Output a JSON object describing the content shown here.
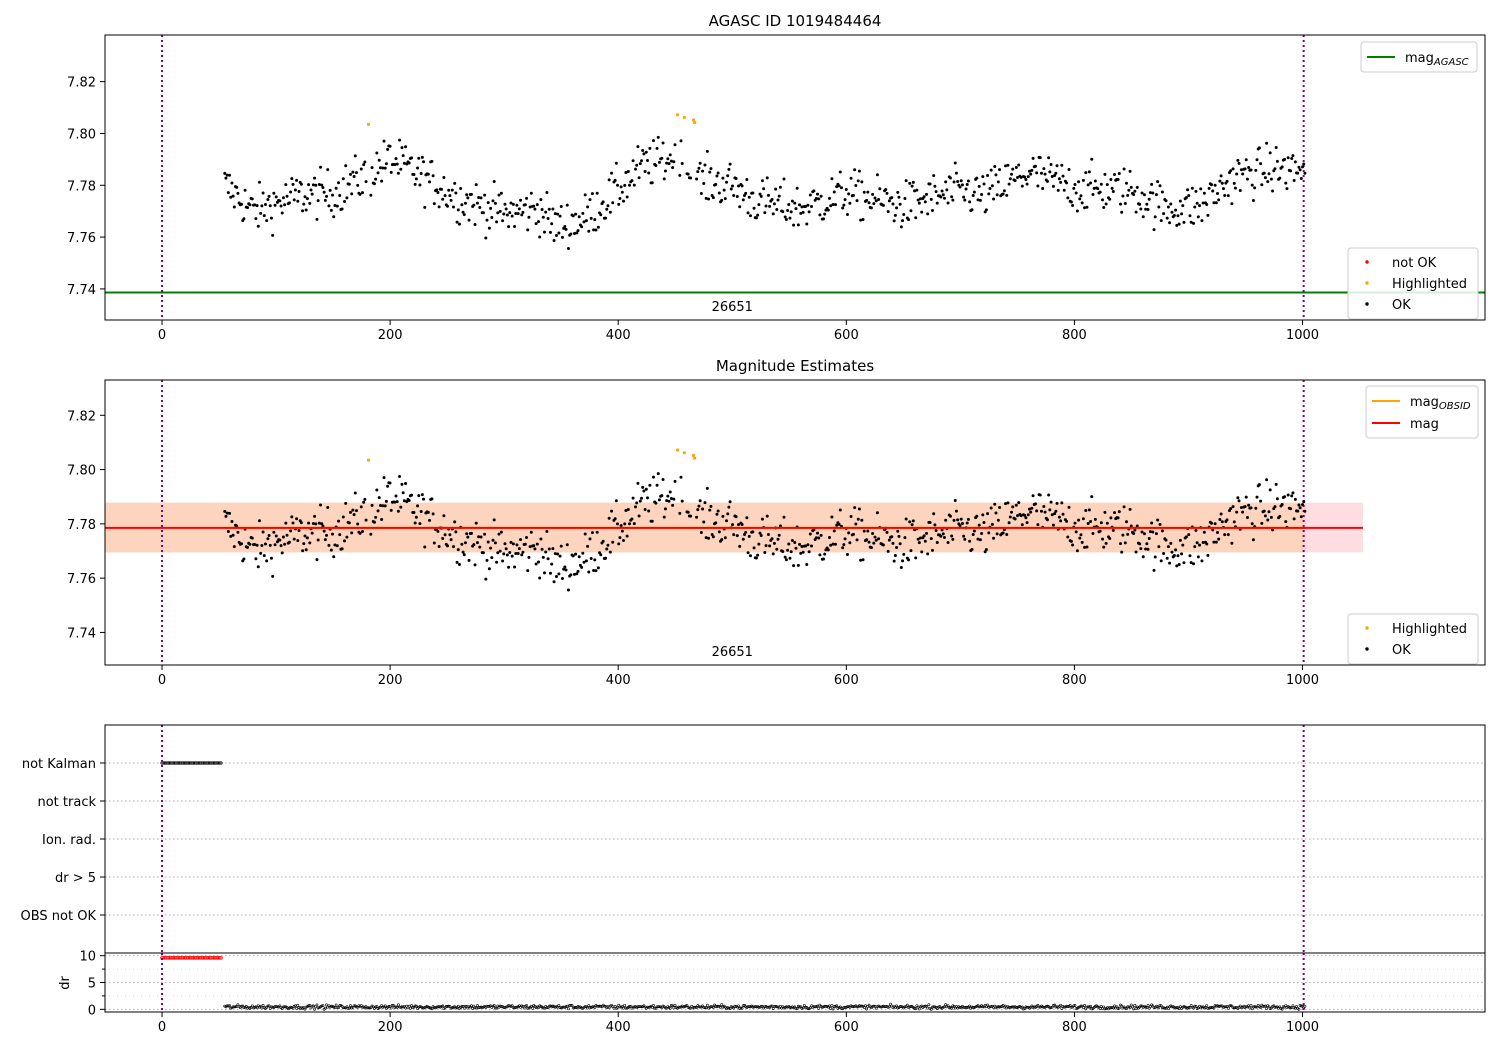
{
  "figure": {
    "background": "#ffffff",
    "colors": {
      "ok": "#000000",
      "highlighted": "#ffa500",
      "not_ok": "#ff0000",
      "agasc_line": "#008000",
      "obsid_line": "#ffa500",
      "mag_line": "#ff0000",
      "band_pink": "#ffdde3",
      "band_orange": "#fdd4bd",
      "obs_boundary": "#800080",
      "grid": "#b0b0b0"
    }
  },
  "chart_data": [
    {
      "id": "top",
      "type": "scatter",
      "title": "AGASC ID 1019484464",
      "xlim": [
        -50,
        1160
      ],
      "ylim": [
        7.728,
        7.838
      ],
      "xticks": [
        0,
        200,
        400,
        600,
        800,
        1000
      ],
      "yticks": [
        7.74,
        7.76,
        7.78,
        7.8,
        7.82
      ],
      "obs_boundaries": [
        0,
        1001
      ],
      "obsid_label": "26651",
      "agasc_mag": 7.7386,
      "series": {
        "start": 55,
        "end": 1003,
        "mean": 7.7785
      },
      "highlighted_points": [
        [
          181,
          7.8035
        ],
        [
          452,
          7.8072
        ],
        [
          458,
          7.8062
        ],
        [
          466,
          7.8052
        ],
        [
          467,
          7.8042
        ]
      ],
      "legend_upper": [
        {
          "label": "mag",
          "sub": "AGASC",
          "marker": "line",
          "color": "#008000"
        }
      ],
      "legend_lower": [
        {
          "label": "not OK",
          "marker": "dot",
          "color": "#ff0000"
        },
        {
          "label": "Highlighted",
          "marker": "dot",
          "color": "#ffa500"
        },
        {
          "label": "OK",
          "marker": "dot",
          "color": "#000000"
        }
      ]
    },
    {
      "id": "mid",
      "type": "scatter",
      "title": "Magnitude Estimates",
      "xlim": [
        -50,
        1160
      ],
      "ylim": [
        7.728,
        7.833
      ],
      "xticks": [
        0,
        200,
        400,
        600,
        800,
        1000
      ],
      "yticks": [
        7.74,
        7.76,
        7.78,
        7.8,
        7.82
      ],
      "obs_boundaries": [
        0,
        1001
      ],
      "obsid_label": "26651",
      "mag_mean": 7.7785,
      "band": [
        7.7695,
        7.7878
      ],
      "band_x": [
        -50,
        1053
      ],
      "obsid_band_x": [
        55,
        1003
      ],
      "highlighted_points": [
        [
          181,
          7.8035
        ],
        [
          452,
          7.8072
        ],
        [
          458,
          7.8062
        ],
        [
          466,
          7.8052
        ],
        [
          467,
          7.8042
        ]
      ],
      "legend_upper": [
        {
          "label": "mag",
          "sub": "OBSID",
          "marker": "line",
          "color": "#ffa500"
        },
        {
          "label": "mag",
          "sub": "",
          "marker": "line",
          "color": "#ff0000"
        }
      ],
      "legend_lower": [
        {
          "label": "Highlighted",
          "marker": "dot",
          "color": "#ffa500"
        },
        {
          "label": "OK",
          "marker": "dot",
          "color": "#000000"
        }
      ]
    },
    {
      "id": "flags",
      "type": "scatter",
      "xlim": [
        -50,
        1160
      ],
      "categories": [
        "not Kalman",
        "not track",
        "Ion. rad.",
        "dr > 5",
        "OBS not OK"
      ],
      "obs_boundaries": [
        0,
        1001
      ],
      "flagged": {
        "category": "not Kalman",
        "x_range": [
          0,
          52
        ]
      }
    },
    {
      "id": "dr",
      "type": "scatter",
      "ylabel": "dr",
      "xlim": [
        -50,
        1160
      ],
      "ylim": [
        -0.5,
        10.5
      ],
      "xticks": [
        0,
        200,
        400,
        600,
        800,
        1000
      ],
      "yticks": [
        0,
        5,
        10
      ],
      "obs_boundaries": [
        0,
        1001
      ],
      "capped": {
        "x_range": [
          0,
          52
        ],
        "value": 9.6
      },
      "series": {
        "x_range": [
          55,
          1003
        ],
        "mean": 0.45,
        "max": 1.25
      }
    }
  ]
}
